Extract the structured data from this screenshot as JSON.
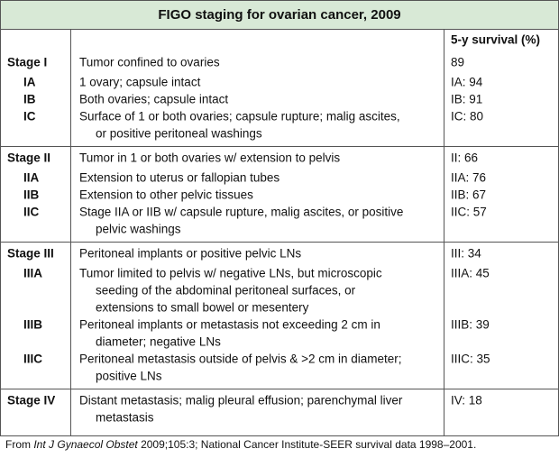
{
  "title": "FIGO staging for ovarian cancer, 2009",
  "header": {
    "survival": "5-y survival (%)"
  },
  "groups": [
    {
      "rows": [
        {
          "stage": "Stage I",
          "description": [
            "Tumor confined to ovaries"
          ],
          "survival": "89"
        },
        {
          "stage": "IA",
          "description": [
            "1 ovary; capsule intact"
          ],
          "survival": "IA: 94"
        },
        {
          "stage": "IB",
          "description": [
            "Both ovaries; capsule intact"
          ],
          "survival": "IB: 91"
        },
        {
          "stage": "IC",
          "description": [
            "Surface of 1 or both ovaries; capsule rupture; malig ascites,",
            "or positive peritoneal washings"
          ],
          "survival": "IC: 80"
        }
      ]
    },
    {
      "rows": [
        {
          "stage": "Stage II",
          "description": [
            "Tumor in 1 or both ovaries w/ extension to pelvis"
          ],
          "survival": "II: 66"
        },
        {
          "stage": "IIA",
          "description": [
            "Extension to uterus or fallopian tubes"
          ],
          "survival": "IIA: 76"
        },
        {
          "stage": "IIB",
          "description": [
            "Extension to other pelvic tissues"
          ],
          "survival": "IIB: 67"
        },
        {
          "stage": "IIC",
          "description": [
            "Stage IIA or IIB w/ capsule rupture, malig ascites, or positive",
            "pelvic washings"
          ],
          "survival": "IIC: 57"
        }
      ]
    },
    {
      "rows": [
        {
          "stage": "Stage III",
          "description": [
            "Peritoneal implants or positive pelvic LNs"
          ],
          "survival": "III: 34"
        },
        {
          "stage": "IIIA",
          "description": [
            "Tumor limited to pelvis w/ negative LNs, but microscopic",
            "seeding of the abdominal peritoneal surfaces, or",
            "extensions to small bowel or mesentery"
          ],
          "survival": "IIIA: 45"
        },
        {
          "stage": "IIIB",
          "description": [
            "Peritoneal implants or metastasis not exceeding 2 cm in",
            "diameter; negative LNs"
          ],
          "survival": "IIIB: 39"
        },
        {
          "stage": "IIIC",
          "description": [
            "Peritoneal metastasis outside of pelvis & >2 cm in diameter;",
            "positive LNs"
          ],
          "survival": "IIIC: 35"
        }
      ]
    },
    {
      "rows": [
        {
          "stage": "Stage IV",
          "description": [
            "Distant metastasis; malig pleural effusion; parenchymal liver",
            "metastasis"
          ],
          "survival": "IV: 18"
        }
      ]
    }
  ],
  "footer": {
    "prefix": "From ",
    "source": "Int J Gynaecol Obstet",
    "rest": " 2009;105:3; National Cancer Institute-SEER survival data 1998–2001."
  }
}
